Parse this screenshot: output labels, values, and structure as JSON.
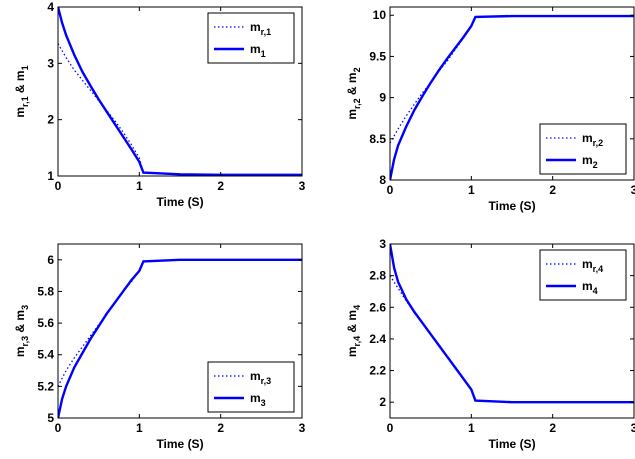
{
  "chart_data": [
    {
      "type": "line",
      "xlabel": "Time (S)",
      "ylabel": {
        "base": "m",
        "sub1": "r,1",
        "mid": " & m",
        "sub2": "1"
      },
      "xlim": [
        0,
        3
      ],
      "ylim": [
        1,
        4
      ],
      "xticks": [
        0,
        1,
        2,
        3
      ],
      "yticks": [
        1,
        2,
        3,
        4
      ],
      "legend_position": "top-right",
      "series": [
        {
          "name": "m_r,1",
          "legend": {
            "base": "m",
            "sub": "r,1"
          },
          "style": "dotted",
          "x": [
            0,
            0.1,
            0.2,
            0.3,
            0.4,
            0.5,
            0.6,
            0.7,
            0.8,
            0.9,
            1.0,
            1.05,
            1.5,
            2.0,
            2.5,
            3.0
          ],
          "y": [
            3.35,
            3.1,
            2.88,
            2.7,
            2.52,
            2.34,
            2.16,
            1.98,
            1.78,
            1.56,
            1.32,
            1.06,
            1.03,
            1.02,
            1.02,
            1.02
          ]
        },
        {
          "name": "m_1",
          "legend": {
            "base": "m",
            "sub": "1"
          },
          "style": "solid",
          "x": [
            0,
            0.05,
            0.1,
            0.2,
            0.3,
            0.4,
            0.5,
            0.6,
            0.7,
            0.8,
            0.9,
            1.0,
            1.05,
            1.5,
            2.0,
            2.5,
            3.0
          ],
          "y": [
            4.0,
            3.72,
            3.5,
            3.15,
            2.85,
            2.6,
            2.36,
            2.14,
            1.92,
            1.7,
            1.48,
            1.25,
            1.06,
            1.03,
            1.02,
            1.02,
            1.02
          ]
        }
      ]
    },
    {
      "type": "line",
      "xlabel": "Time (S)",
      "ylabel": {
        "base": "m",
        "sub1": "r,2",
        "mid": " & m",
        "sub2": "2"
      },
      "xlim": [
        0,
        3
      ],
      "ylim": [
        8,
        10.1
      ],
      "xticks": [
        0,
        1,
        2,
        3
      ],
      "yticks": [
        8,
        8.5,
        9,
        9.5,
        10
      ],
      "legend_position": "bottom-right",
      "series": [
        {
          "name": "m_r,2",
          "legend": {
            "base": "m",
            "sub": "r,2"
          },
          "style": "dotted",
          "x": [
            0,
            0.1,
            0.2,
            0.3,
            0.4,
            0.5,
            0.6,
            0.7,
            0.8,
            0.9,
            1.0,
            1.05,
            1.5,
            2.0,
            2.5,
            3.0
          ],
          "y": [
            8.45,
            8.62,
            8.78,
            8.92,
            9.06,
            9.18,
            9.32,
            9.44,
            9.58,
            9.72,
            9.86,
            9.98,
            9.99,
            9.99,
            9.99,
            9.99
          ]
        },
        {
          "name": "m_2",
          "legend": {
            "base": "m",
            "sub": "2"
          },
          "style": "solid",
          "x": [
            0,
            0.05,
            0.1,
            0.2,
            0.3,
            0.4,
            0.5,
            0.6,
            0.7,
            0.8,
            0.9,
            1.0,
            1.05,
            1.5,
            2.0,
            2.5,
            3.0
          ],
          "y": [
            8.0,
            8.25,
            8.42,
            8.65,
            8.85,
            9.02,
            9.18,
            9.33,
            9.47,
            9.6,
            9.73,
            9.87,
            9.98,
            9.99,
            9.99,
            9.99,
            9.99
          ]
        }
      ]
    },
    {
      "type": "line",
      "xlabel": "Time (S)",
      "ylabel": {
        "base": "m",
        "sub1": "r,3",
        "mid": " & m",
        "sub2": "3"
      },
      "xlim": [
        0,
        3
      ],
      "ylim": [
        5,
        6.1
      ],
      "xticks": [
        0,
        1,
        2,
        3
      ],
      "yticks": [
        5,
        5.2,
        5.4,
        5.6,
        5.8,
        6
      ],
      "legend_position": "bottom-right",
      "series": [
        {
          "name": "m_r,3",
          "legend": {
            "base": "m",
            "sub": "r,3"
          },
          "style": "dotted",
          "x": [
            0,
            0.1,
            0.2,
            0.3,
            0.4,
            0.5,
            0.6,
            0.7,
            0.8,
            0.9,
            1.0,
            1.05,
            1.5,
            2.0,
            2.5,
            3.0
          ],
          "y": [
            5.2,
            5.3,
            5.38,
            5.45,
            5.52,
            5.59,
            5.66,
            5.73,
            5.8,
            5.86,
            5.93,
            5.99,
            6.0,
            6.0,
            6.0,
            6.0
          ]
        },
        {
          "name": "m_3",
          "legend": {
            "base": "m",
            "sub": "3"
          },
          "style": "solid",
          "x": [
            0,
            0.05,
            0.1,
            0.2,
            0.3,
            0.4,
            0.5,
            0.6,
            0.7,
            0.8,
            0.9,
            1.0,
            1.05,
            1.5,
            2.0,
            2.5,
            3.0
          ],
          "y": [
            5.0,
            5.12,
            5.2,
            5.32,
            5.41,
            5.5,
            5.58,
            5.66,
            5.73,
            5.8,
            5.87,
            5.93,
            5.99,
            6.0,
            6.0,
            6.0,
            6.0
          ]
        }
      ]
    },
    {
      "type": "line",
      "xlabel": "Time (S)",
      "ylabel": {
        "base": "m",
        "sub1": "r,4",
        "mid": " & m",
        "sub2": "4"
      },
      "xlim": [
        0,
        3
      ],
      "ylim": [
        1.9,
        3
      ],
      "xticks": [
        0,
        1,
        2,
        3
      ],
      "yticks": [
        2,
        2.2,
        2.4,
        2.6,
        2.8,
        3
      ],
      "legend_position": "top-right",
      "series": [
        {
          "name": "m_r,4",
          "legend": {
            "base": "m",
            "sub": "r,4"
          },
          "style": "dotted",
          "x": [
            0,
            0.1,
            0.2,
            0.3,
            0.4,
            0.5,
            0.6,
            0.7,
            0.8,
            0.9,
            1.0,
            1.05,
            1.5,
            2.0,
            2.5,
            3.0
          ],
          "y": [
            2.8,
            2.72,
            2.64,
            2.57,
            2.5,
            2.43,
            2.36,
            2.29,
            2.22,
            2.15,
            2.08,
            2.01,
            2.0,
            2.0,
            2.0,
            2.0
          ]
        },
        {
          "name": "m_4",
          "legend": {
            "base": "m",
            "sub": "4"
          },
          "style": "solid",
          "x": [
            0,
            0.05,
            0.1,
            0.2,
            0.3,
            0.4,
            0.5,
            0.6,
            0.7,
            0.8,
            0.9,
            1.0,
            1.05,
            1.5,
            2.0,
            2.5,
            3.0
          ],
          "y": [
            3.0,
            2.85,
            2.76,
            2.65,
            2.57,
            2.5,
            2.43,
            2.36,
            2.29,
            2.22,
            2.15,
            2.08,
            2.01,
            2.0,
            2.0,
            2.0,
            2.0
          ]
        }
      ]
    }
  ],
  "colors": {
    "line": "#0000ff",
    "axis": "#000000"
  }
}
